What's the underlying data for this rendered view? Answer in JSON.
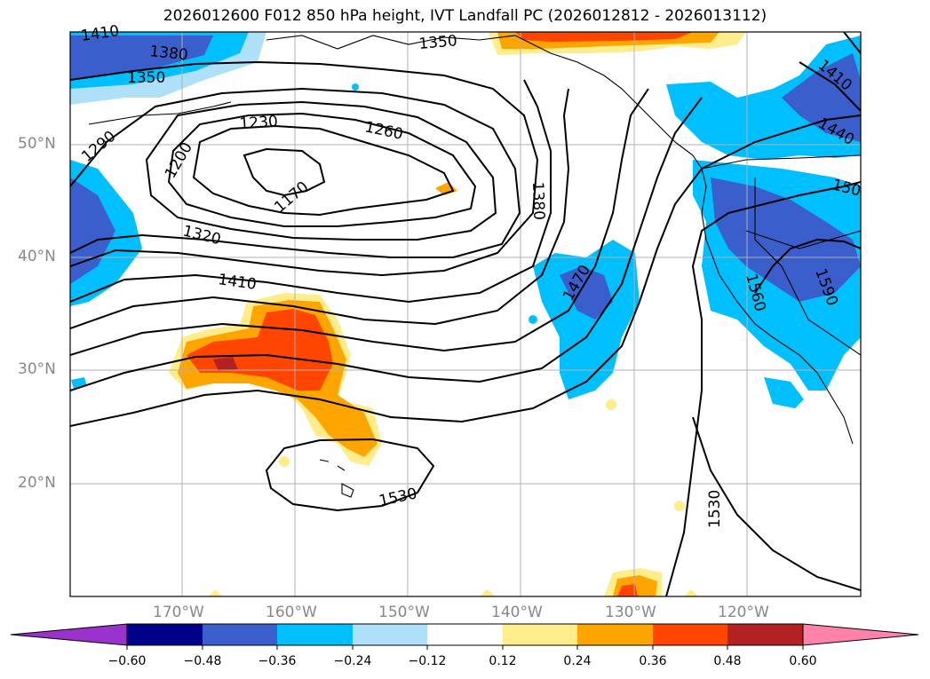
{
  "title": "2026012600 F012 850 hPa height, IVT Landfall PC (2026012812 - 2026013112)",
  "map": {
    "latitude_labels": [
      "50°N",
      "40°N",
      "30°N",
      "20°N"
    ],
    "longitude_labels": [
      "170°W",
      "160°W",
      "150°W",
      "140°W",
      "130°W",
      "120°W"
    ],
    "contour_labels": [
      "1410",
      "1380",
      "1350",
      "1350",
      "1290",
      "1230",
      "1260",
      "1200",
      "1170",
      "1380",
      "1320",
      "1410",
      "1470",
      "1410",
      "1440",
      "150",
      "1560",
      "1590",
      "1530",
      "1530"
    ]
  },
  "colorbar": {
    "ticks": [
      "−0.60",
      "−0.48",
      "−0.36",
      "−0.24",
      "−0.12",
      "0.12",
      "0.24",
      "0.36",
      "0.48",
      "0.60"
    ],
    "colors": [
      "#9a32cd",
      "#00008b",
      "#3a5fcd",
      "#00bfff",
      "#afe0fa",
      "#ffffff",
      "#ffec8b",
      "#ffa500",
      "#ff4500",
      "#b22222",
      "#ff82ab"
    ]
  }
}
